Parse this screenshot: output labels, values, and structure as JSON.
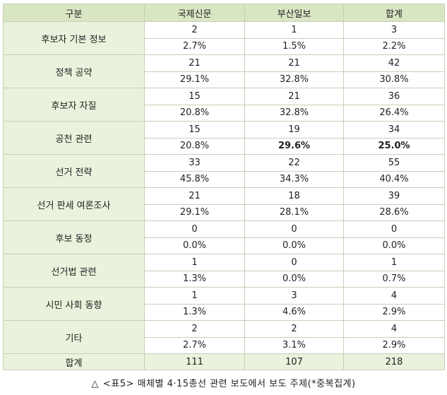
{
  "headers": [
    "구분",
    "국제신문",
    "부산일보",
    "합계"
  ],
  "rows": [
    {
      "label": "후보자 기본 정보",
      "counts": [
        "2",
        "1",
        "3"
      ],
      "pcts": [
        "2.7%",
        "1.5%",
        "2.2%"
      ]
    },
    {
      "label": "정책 공약",
      "counts": [
        "21",
        "21",
        "42"
      ],
      "pcts": [
        "29.1%",
        "32.8%",
        "30.8%"
      ]
    },
    {
      "label": "후보자 자질",
      "counts": [
        "15",
        "21",
        "36"
      ],
      "pcts": [
        "20.8%",
        "32.8%",
        "26.4%"
      ]
    },
    {
      "label": "공천 관련",
      "counts": [
        "15",
        "19",
        "34"
      ],
      "pcts": [
        "20.8%",
        "29.6%",
        "25.0%"
      ]
    },
    {
      "label": "선거 전략",
      "counts": [
        "33",
        "22",
        "55"
      ],
      "pcts": [
        "45.8%",
        "34.3%",
        "40.4%"
      ]
    },
    {
      "label": "선거 판세 여론조사",
      "counts": [
        "21",
        "18",
        "39"
      ],
      "pcts": [
        "29.1%",
        "28.1%",
        "28.6%"
      ]
    },
    {
      "label": "후보 동정",
      "counts": [
        "0",
        "0",
        "0"
      ],
      "pcts": [
        "0.0%",
        "0.0%",
        "0.0%"
      ]
    },
    {
      "label": "선거법 관련",
      "counts": [
        "1",
        "0",
        "1"
      ],
      "pcts": [
        "1.3%",
        "0.0%",
        "0.7%"
      ]
    },
    {
      "label": "시민 사회 동향",
      "counts": [
        "1",
        "3",
        "4"
      ],
      "pcts": [
        "1.3%",
        "4.6%",
        "2.9%"
      ]
    },
    {
      "label": "기타",
      "counts": [
        "2",
        "2",
        "4"
      ],
      "pcts": [
        "2.7%",
        "3.1%",
        "2.9%"
      ]
    }
  ],
  "total": {
    "label": "합계",
    "values": [
      "111",
      "107",
      "218"
    ]
  },
  "caption": {
    "symbol": "△",
    "text": "<표5> 매체별 4·15총선 관련 보도에서 보도 주제(*중복집계)"
  }
}
